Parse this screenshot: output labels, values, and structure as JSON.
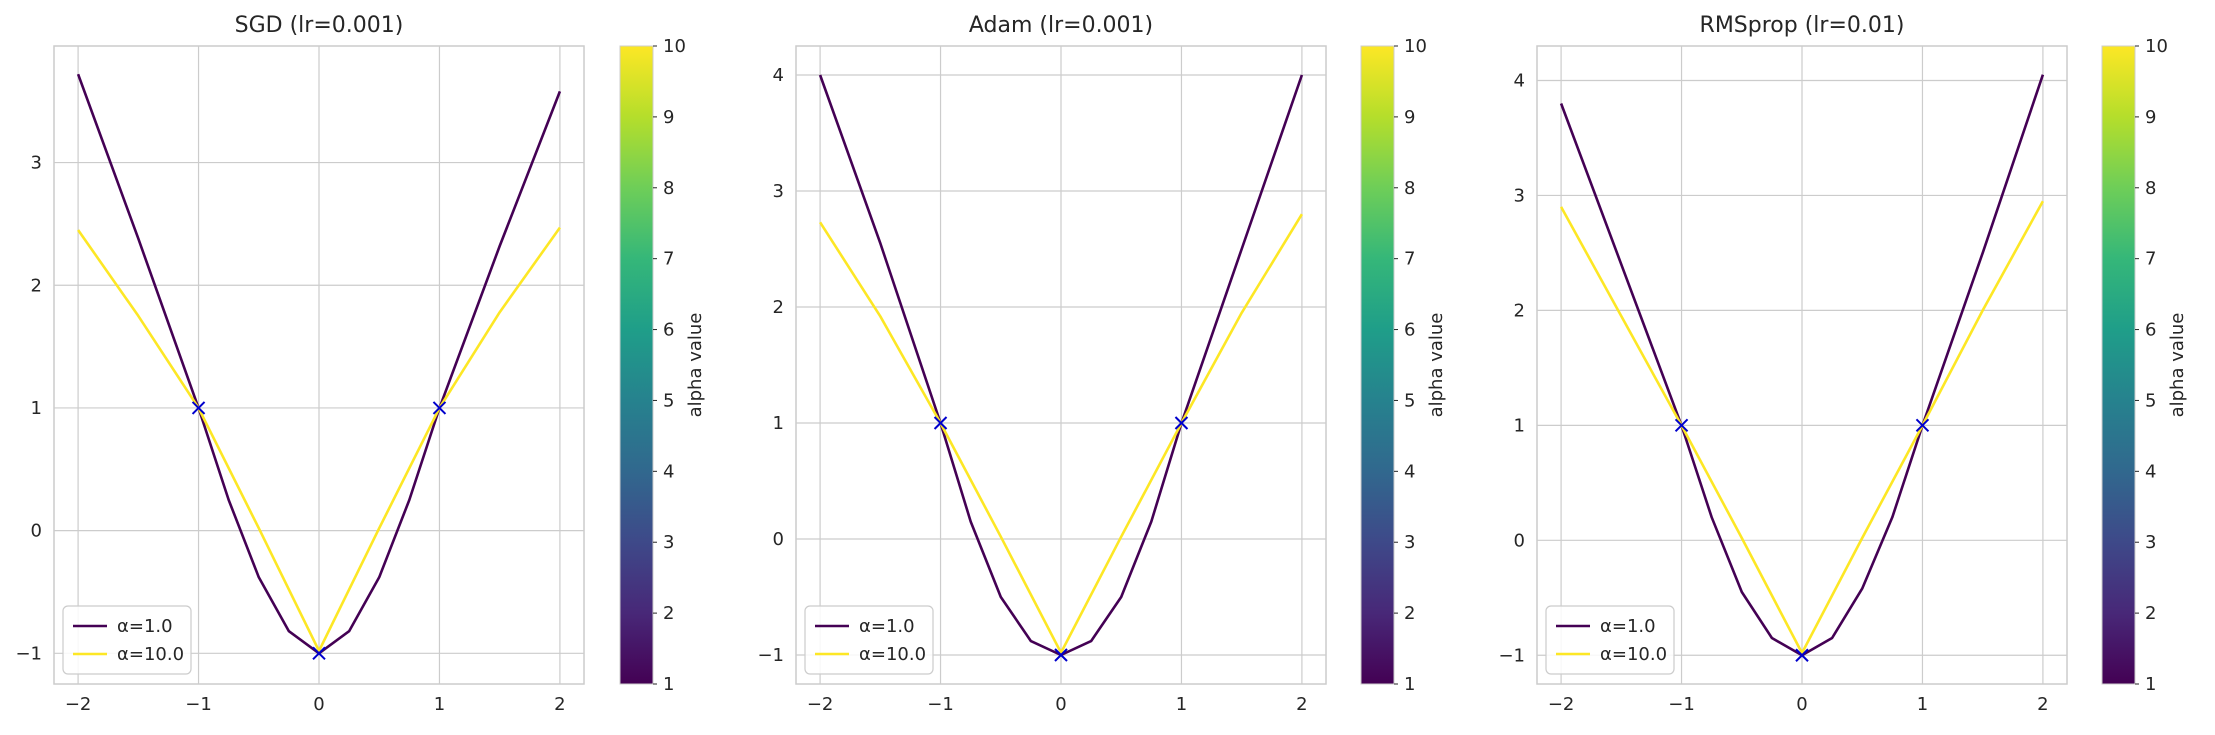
{
  "chart_data": [
    {
      "type": "line",
      "title": "SGD (lr=0.001)",
      "xlabel": "",
      "ylabel": "",
      "xlim": [
        -2.2,
        2.2
      ],
      "ylim": [
        -1.25,
        3.95
      ],
      "xticks": [
        -2,
        -1,
        0,
        1,
        2
      ],
      "yticks": [
        -1,
        0,
        1,
        2,
        3
      ],
      "grid": true,
      "legend_position": "lower-left",
      "series": [
        {
          "name": "α=1.0",
          "color": "#440154",
          "x": [
            -2,
            -1.5,
            -1,
            -0.75,
            -0.5,
            -0.25,
            0,
            0.25,
            0.5,
            0.75,
            1,
            1.5,
            2
          ],
          "y": [
            3.72,
            2.38,
            1.0,
            0.25,
            -0.38,
            -0.82,
            -1.0,
            -0.82,
            -0.38,
            0.25,
            1.0,
            2.32,
            3.58
          ]
        },
        {
          "name": "α=10.0",
          "color": "#fde725",
          "x": [
            -2,
            -1.5,
            -1,
            -0.5,
            0,
            0.5,
            1,
            1.5,
            2
          ],
          "y": [
            2.45,
            1.75,
            1.0,
            0.02,
            -0.98,
            0.02,
            1.0,
            1.78,
            2.47
          ]
        }
      ],
      "markers": {
        "x": [
          -1,
          0,
          1
        ],
        "y": [
          1,
          -1,
          1
        ],
        "symbol": "x",
        "color": "#0000cc"
      },
      "colorbar": {
        "label": "alpha value",
        "range": [
          1,
          10
        ],
        "ticks": [
          1,
          2,
          3,
          4,
          5,
          6,
          7,
          8,
          9,
          10
        ],
        "colormap": "viridis"
      }
    },
    {
      "type": "line",
      "title": "Adam (lr=0.001)",
      "xlabel": "",
      "ylabel": "",
      "xlim": [
        -2.2,
        2.2
      ],
      "ylim": [
        -1.25,
        4.25
      ],
      "xticks": [
        -2,
        -1,
        0,
        1,
        2
      ],
      "yticks": [
        -1,
        0,
        1,
        2,
        3,
        4
      ],
      "grid": true,
      "legend_position": "lower-left",
      "series": [
        {
          "name": "α=1.0",
          "color": "#440154",
          "x": [
            -2,
            -1.5,
            -1,
            -0.75,
            -0.5,
            -0.25,
            0,
            0.25,
            0.5,
            0.75,
            1,
            1.5,
            2
          ],
          "y": [
            4.0,
            2.55,
            1.0,
            0.15,
            -0.5,
            -0.88,
            -1.0,
            -0.88,
            -0.5,
            0.15,
            1.0,
            2.5,
            4.0
          ]
        },
        {
          "name": "α=10.0",
          "color": "#fde725",
          "x": [
            -2,
            -1.5,
            -1,
            -0.5,
            0,
            0.5,
            1,
            1.5,
            2
          ],
          "y": [
            2.73,
            1.92,
            1.0,
            0.02,
            -0.98,
            0.02,
            1.0,
            1.95,
            2.8
          ]
        }
      ],
      "markers": {
        "x": [
          -1,
          0,
          1
        ],
        "y": [
          1,
          -1,
          1
        ],
        "symbol": "x",
        "color": "#0000cc"
      },
      "colorbar": {
        "label": "alpha value",
        "range": [
          1,
          10
        ],
        "ticks": [
          1,
          2,
          3,
          4,
          5,
          6,
          7,
          8,
          9,
          10
        ],
        "colormap": "viridis"
      }
    },
    {
      "type": "line",
      "title": "RMSprop (lr=0.01)",
      "xlabel": "",
      "ylabel": "",
      "xlim": [
        -2.2,
        2.2
      ],
      "ylim": [
        -1.25,
        4.3
      ],
      "xticks": [
        -2,
        -1,
        0,
        1,
        2
      ],
      "yticks": [
        -1,
        0,
        1,
        2,
        3,
        4
      ],
      "grid": true,
      "legend_position": "lower-left",
      "series": [
        {
          "name": "α=1.0",
          "color": "#440154",
          "x": [
            -2,
            -1.5,
            -1,
            -0.75,
            -0.5,
            -0.25,
            0,
            0.25,
            0.5,
            0.75,
            1,
            1.5,
            2
          ],
          "y": [
            3.8,
            2.4,
            1.0,
            0.2,
            -0.45,
            -0.85,
            -1.0,
            -0.85,
            -0.42,
            0.2,
            1.0,
            2.5,
            4.05
          ]
        },
        {
          "name": "α=10.0",
          "color": "#fde725",
          "x": [
            -2,
            -1.5,
            -1,
            -0.5,
            0,
            0.5,
            1,
            1.5,
            2
          ],
          "y": [
            2.9,
            1.95,
            1.0,
            0.02,
            -0.98,
            0.02,
            1.0,
            2.0,
            2.95
          ]
        }
      ],
      "markers": {
        "x": [
          -1,
          0,
          1
        ],
        "y": [
          1,
          -1,
          1
        ],
        "symbol": "x",
        "color": "#0000cc"
      },
      "colorbar": {
        "label": "alpha value",
        "range": [
          1,
          10
        ],
        "ticks": [
          1,
          2,
          3,
          4,
          5,
          6,
          7,
          8,
          9,
          10
        ],
        "colormap": "viridis"
      }
    }
  ]
}
